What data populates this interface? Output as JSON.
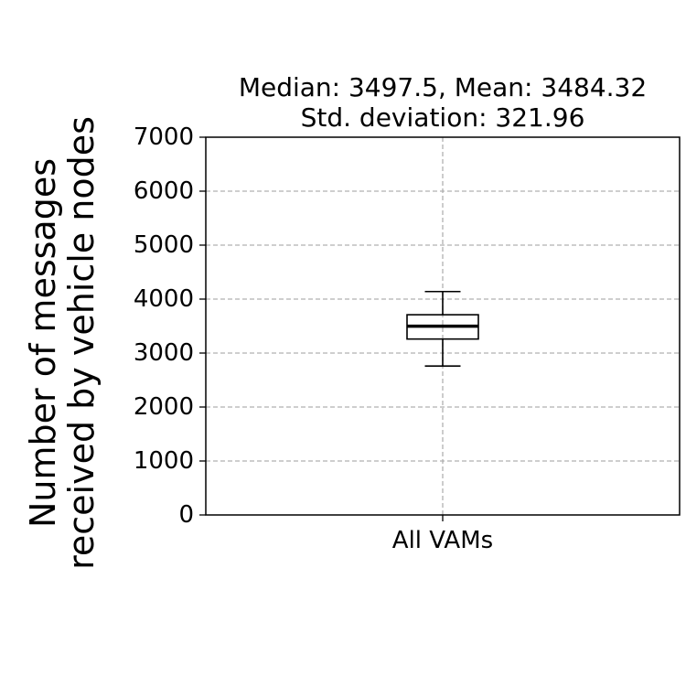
{
  "chart_data": {
    "type": "box",
    "title_lines": [
      "Median: 3497.5, Mean: 3484.32",
      "Std. deviation: 321.96"
    ],
    "ylabel_lines": [
      "Number of messages",
      "received by vehicle nodes"
    ],
    "xlabel": "",
    "categories": [
      "All VAMs"
    ],
    "ylim": [
      0,
      7000
    ],
    "yticks": [
      0,
      1000,
      2000,
      3000,
      4000,
      5000,
      6000,
      7000
    ],
    "grid": true,
    "boxes": [
      {
        "category": "All VAMs",
        "whisker_low": 2760,
        "q1": 3260,
        "median": 3497.5,
        "q3": 3710,
        "whisker_high": 4140
      }
    ],
    "stats": {
      "median": 3497.5,
      "mean": 3484.32,
      "std_deviation": 321.96
    }
  }
}
